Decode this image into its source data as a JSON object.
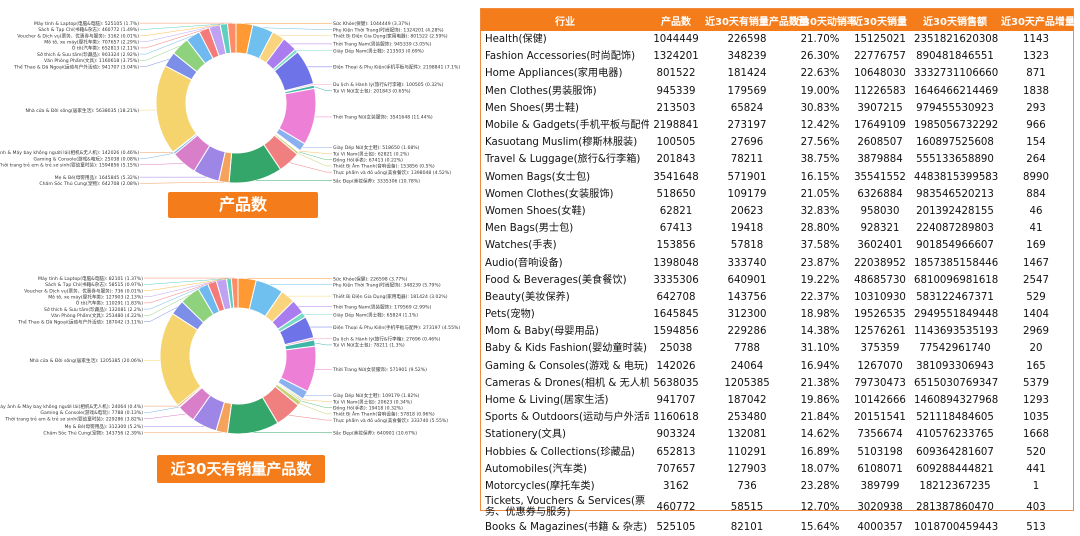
{
  "chart_data": [
    {
      "type": "pie",
      "title": "产品数",
      "labels": [
        "Sức Khỏe(保健)",
        "Phụ Kiện Thời Trang(时尚配饰)",
        "Thiết Bị Điện Gia Dụng(家用电器)",
        "Thời Trang Nam(男装服饰)",
        "Giày Dép Nam(男士鞋)",
        "Điện Thoại & Phụ Kiện(手机平板与配件)",
        "Du lịch & Hành lý(旅行&行李箱)",
        "Túi Ví Nữ(女士包)",
        "Thời Trang Nữ(女装服饰)",
        "Giày Dép Nữ(女士鞋)",
        "Túi Ví Nam(男士包)",
        "Đồng Hồ(手表)",
        "Thiết Bị Âm Thanh(音响设备)",
        "Thực phẩm và đồ uống(美食餐饮)",
        "Sắc Đẹp(美妆保养)",
        "Chăm Sóc Thú Cưng(宠物)",
        "Mẹ & Bé(母婴用品)",
        "Thời trang trẻ em & trẻ sơ sinh(婴幼童时装)",
        "Gaming & Console(游戏&电玩)",
        "Máy ảnh & Máy bay không người lái(相机&无人机)",
        "Nhà cửa & Đời sống(居家生活)",
        "Thể Thao & Dã Ngoại(运动与户外活动)",
        "Văn Phòng Phẩm(文具)",
        "Sở thích & Sưu tầm(珍藏品)",
        "Ô tô(汽车类)",
        "Mô tô, xe máy(摩托车类)",
        "Voucher & Dịch vụ(票务、优惠券与服务)",
        "Sách & Tạp Chí(书籍&杂志)",
        "Máy tính & Laptop(电脑&电脑)"
      ],
      "values": [
        1044449,
        1324201,
        801522,
        945339,
        213503,
        2198841,
        100505,
        201843,
        3541648,
        518650,
        62821,
        67413,
        153856,
        1398048,
        3335306,
        642708,
        1645845,
        1594856,
        142026,
        25038,
        5638035,
        941707,
        1160618,
        903324,
        652813,
        707657,
        3162,
        460772,
        525105
      ],
      "percent_labels": [
        "Sức Khỏe(保健): 1044449 (3.37%)",
        "Phụ Kiện Thời Trang(时尚配饰): 1324201 (4.28%)",
        "Thiết Bị Điện Gia Dụng(家用电器): 801522 (2.59%)",
        "Thời Trang Nam(男装服饰): 945339 (3.05%)",
        "Giày Dép Nam(男士鞋): 213503 (0.69%)",
        "Điện Thoại & Phụ Kiện(手机平板与配件): 2198841 (7.1%)",
        "Du lịch & Hành lý(旅行&行李箱): 100505 (0.32%)",
        "Túi Ví Nữ(女士包): 201843 (0.65%)",
        "Thời Trang Nữ(女装服饰): 3541648 (11.44%)",
        "Giày Dép Nữ(女士鞋): 518650 (1.68%)",
        "Túi Ví Nam(男士包): 62821 (0.2%)",
        "Đồng Hồ(手表): 67413 (0.22%)",
        "Thiết Bị Âm Thanh(音响设备): 153856 (0.5%)",
        "Thực phẩm và đồ uống(美食餐饮): 1398048 (4.52%)",
        "Sắc Đẹp(美妆保养): 3335306 (10.78%)",
        "Chăm Sóc Thú Cưng(宠物): 642708 (2.08%)",
        "Mẹ & Bé(母婴用品): 1645845 (5.32%)",
        "Thời trang trẻ em & trẻ sơ sinh(婴幼童时装): 1594856 (5.15%)",
        "Gaming & Console(游戏&电玩): 25038 (0.08%)",
        "Máy ảnh & Máy bay không người lái(相机&无人机): 142026 (0.46%)",
        "Nhà cửa & Đời sống(居家生活): 5638035 (18.21%)",
        "Thể Thao & Dã Ngoại(运动与户外活动): 941707 (3.04%)",
        "Văn Phòng Phẩm(文具): 1160618 (3.75%)",
        "Sở thích & Sưu tầm(珍藏品): 903324 (2.92%)",
        "Ô tô(汽车类): 652813 (2.11%)",
        "Mô tô, xe máy(摩托车类): 707657 (2.29%)",
        "Voucher & Dịch vụ(票务、优惠券与服务): 3162 (0.01%)",
        "Sách & Tạp Chí(书籍&杂志): 460772 (1.49%)",
        "Máy tính & Laptop(电脑&电脑): 525105 (1.7%)"
      ]
    },
    {
      "type": "pie",
      "title": "近30天有销量产品数",
      "labels": [
        "Sức Khỏe(保健)",
        "Phụ Kiện Thời Trang(时尚配饰)",
        "Thiết Bị Điện Gia Dụng(家用电器)",
        "Thời Trang Nam(男装服饰)",
        "Giày Dép Nam(男士鞋)",
        "Điện Thoại & Phụ Kiện(手机平板与配件)",
        "Du lịch & Hành lý(旅行&行李箱)",
        "Túi Ví Nữ(女士包)",
        "Thời Trang Nữ(女装服饰)",
        "Giày Dép Nữ(女士鞋)",
        "Túi Ví Nam(男士包)",
        "Đồng Hồ(手表)",
        "Thiết Bị Âm Thanh(音响设备)",
        "Thực phẩm và đồ uống(美食餐饮)",
        "Sắc Đẹp(美妆保养)",
        "Chăm Sóc Thú Cưng(宠物)",
        "Mẹ & Bé(母婴用品)",
        "Thời trang trẻ em & trẻ sơ sinh(婴幼童时装)",
        "Gaming & Console(游戏&电玩)",
        "Máy ảnh & Máy bay không người lái(相机&无人机)",
        "Nhà cửa & Đời sống(居家生活)",
        "Thể Thao & Dã Ngoại(运动与户外活动)",
        "Văn Phòng Phẩm(文具)",
        "Sở thích & Sưu tầm(珍藏品)",
        "Ô tô(汽车类)",
        "Mô tô, xe máy(摩托车类)",
        "Voucher & Dịch vụ(票务、优惠券与服务)",
        "Sách & Tạp Chí(书籍&杂志)",
        "Máy tính & Laptop(电脑&电脑)"
      ],
      "values": [
        226598,
        348239,
        181424,
        179569,
        65824,
        273197,
        27696,
        78211,
        571901,
        109179,
        20623,
        19418,
        57818,
        333740,
        640901,
        143756,
        312300,
        229286,
        7788,
        24064,
        1205385,
        187042,
        253480,
        132081,
        110291,
        127903,
        736,
        58515,
        82101
      ],
      "percent_labels": [
        "Sức Khỏe(保健): 226598 (3.77%)",
        "Phụ Kiện Thời Trang(时尚配饰): 348239 (5.79%)",
        "Thiết Bị Điện Gia Dụng(家用电器): 181424 (3.02%)",
        "Thời Trang Nam(男装服饰): 179569 (2.99%)",
        "Giày Dép Nam(男士鞋): 65824 (1.1%)",
        "Điện Thoại & Phụ Kiện(手机平板与配件): 273197 (4.55%)",
        "Du lịch & Hành lý(旅行&行李箱): 27696 (0.46%)",
        "Túi Ví Nữ(女士包): 78211 (1.3%)",
        "Thời Trang Nữ(女装服饰): 571901 (9.52%)",
        "Giày Dép Nữ(女士鞋): 109179 (1.82%)",
        "Túi Ví Nam(男士包): 20623 (0.34%)",
        "Đồng Hồ(手表): 19418 (0.32%)",
        "Thiết Bị Âm Thanh(音响设备): 57818 (0.96%)",
        "Thực phẩm và đồ uống(美食餐饮): 333740 (5.55%)",
        "Sắc Đẹp(美妆保养): 640901 (10.67%)",
        "Chăm Sóc Thú Cưng(宠物): 143756 (2.39%)",
        "Mẹ & Bé(母婴用品): 312300 (5.2%)",
        "Thời trang trẻ em & trẻ sơ sinh(婴幼童时装): 229286 (3.82%)",
        "Gaming & Console(游戏&电玩): 7788 (0.13%)",
        "Máy ảnh & Máy bay không người lái(相机&无人机): 24064 (0.4%)",
        "Nhà cửa & Đời sống(居家生活): 1205385 (20.06%)",
        "Thể Thao & Dã Ngoại(运动与户外活动): 187042 (3.11%)",
        "Văn Phòng Phẩm(文具): 253480 (4.22%)",
        "Sở thích & Sưu tầm(珍藏品): 132081 (2.2%)",
        "Ô tô(汽车类): 110291 (1.83%)",
        "Mô tô, xe máy(摩托车类): 127903 (2.13%)",
        "Voucher & Dịch vụ(票务、优惠券与服务): 736 (0.01%)",
        "Sách & Tạp Chí(书籍&杂志): 58515 (0.97%)",
        "Máy tính & Laptop(电脑&电脑): 82101 (1.37%)"
      ]
    },
    {
      "type": "table",
      "columns": [
        "行业",
        "产品数",
        "近30天有销量产品数量",
        "近30天动销率",
        "近30天销量",
        "近30天销售额",
        "近30天产品增量"
      ],
      "rows": [
        [
          "Health(保健)",
          "1044449",
          "226598",
          "21.70%",
          "15125021",
          "2351821620308",
          "1143"
        ],
        [
          "Fashion Accessories(时尚配饰)",
          "1324201",
          "348239",
          "26.30%",
          "22776757",
          "890481846551",
          "1323"
        ],
        [
          "Home Appliances(家用电器)",
          "801522",
          "181424",
          "22.63%",
          "10648030",
          "3332731106660",
          "871"
        ],
        [
          "Men Clothes(男装服饰)",
          "945339",
          "179569",
          "19.00%",
          "11226583",
          "1646466214469",
          "1838"
        ],
        [
          "Men Shoes(男士鞋)",
          "213503",
          "65824",
          "30.83%",
          "3907215",
          "979455530923",
          "293"
        ],
        [
          "Mobile & Gadgets(手机平板与配件)",
          "2198841",
          "273197",
          "12.42%",
          "17649109",
          "1985056732292",
          "966"
        ],
        [
          "Kasuotang Muslim(穆斯林服装)",
          "100505",
          "27696",
          "27.56%",
          "2608507",
          "160897525608",
          "154"
        ],
        [
          "Travel & Luggage(旅行&行李箱)",
          "201843",
          "78211",
          "38.75%",
          "3879884",
          "555133658890",
          "264"
        ],
        [
          "Women Bags(女士包)",
          "3541648",
          "571901",
          "16.15%",
          "35541552",
          "4483815399583",
          "8990"
        ],
        [
          "Women Clothes(女装服饰)",
          "518650",
          "109179",
          "21.05%",
          "6326884",
          "983546520213",
          "884"
        ],
        [
          "Women Shoes(女鞋)",
          "62821",
          "20623",
          "32.83%",
          "958030",
          "201392428155",
          "46"
        ],
        [
          "Men Bags(男士包)",
          "67413",
          "19418",
          "28.80%",
          "928321",
          "224087289803",
          "41"
        ],
        [
          "Watches(手表)",
          "153856",
          "57818",
          "37.58%",
          "3602401",
          "901854966607",
          "169"
        ],
        [
          "Audio(音响设备)",
          "1398048",
          "333740",
          "23.87%",
          "22038952",
          "1857385158446",
          "1467"
        ],
        [
          "Food & Beverages(美食餐饮)",
          "3335306",
          "640901",
          "19.22%",
          "48685730",
          "6810096981618",
          "2547"
        ],
        [
          "Beauty(美妆保养)",
          "642708",
          "143756",
          "22.37%",
          "10310930",
          "583122467371",
          "529"
        ],
        [
          "Pets(宠物)",
          "1645845",
          "312300",
          "18.98%",
          "19526535",
          "2949551849448",
          "1404"
        ],
        [
          "Mom & Baby(母婴用品)",
          "1594856",
          "229286",
          "14.38%",
          "12576261",
          "1143693535193",
          "2969"
        ],
        [
          "Baby & Kids Fashion(婴幼童时装)",
          "25038",
          "7788",
          "31.10%",
          "375359",
          "77542961740",
          "20"
        ],
        [
          "Gaming & Consoles(游戏 & 电玩)",
          "142026",
          "24064",
          "16.94%",
          "1267070",
          "381093306943",
          "165"
        ],
        [
          "Cameras & Drones(相机 & 无人机)",
          "5638035",
          "1205385",
          "21.38%",
          "79730473",
          "6515030769347",
          "5379"
        ],
        [
          "Home & Living(居家生活)",
          "941707",
          "187042",
          "19.86%",
          "10142666",
          "1460894327968",
          "1293"
        ],
        [
          "Sports & Outdoors(运动与户外活动)",
          "1160618",
          "253480",
          "21.84%",
          "20151541",
          "521118484605",
          "1035"
        ],
        [
          "Stationery(文具)",
          "903324",
          "132081",
          "14.62%",
          "7356674",
          "410576233765",
          "1668"
        ],
        [
          "Hobbies & Collections(珍藏品)",
          "652813",
          "110291",
          "16.89%",
          "5103198",
          "609364281607",
          "520"
        ],
        [
          "Automobiles(汽车类)",
          "707657",
          "127903",
          "18.07%",
          "6108071",
          "609288444821",
          "441"
        ],
        [
          "Motorcycles(摩托车类)",
          "3162",
          "736",
          "23.28%",
          "389799",
          "18212367235",
          "1"
        ],
        [
          "Tickets, Vouchers & Services(票务、优惠券与服务)",
          "460772",
          "58515",
          "12.70%",
          "3020938",
          "281387860470",
          "403"
        ],
        [
          "Books & Magazines(书籍 & 杂志)",
          "525105",
          "82101",
          "15.64%",
          "4000357",
          "1018700459443",
          "513"
        ]
      ]
    }
  ],
  "palette": [
    "#ff9933",
    "#6fc0ee",
    "#fad37d",
    "#a97cf0",
    "#79d9c9",
    "#6e74e8",
    "#f4a3c6",
    "#3fb6a8",
    "#ee7fd6",
    "#8ab0f0",
    "#f5c16a",
    "#5bc27b",
    "#c7d16f",
    "#f08080",
    "#35a66a",
    "#f5a25d",
    "#9e86e6",
    "#d97fc9",
    "#7ab5e8",
    "#e89d61",
    "#f6d46d",
    "#7d8ee8",
    "#8fd27d",
    "#6fb8f0",
    "#f57a7a",
    "#bfa2f2",
    "#ffbf4d",
    "#5fd0c0",
    "#ff8c69"
  ],
  "labels": {
    "chart1": "产品数",
    "chart2": "近30天有销量产品数"
  }
}
